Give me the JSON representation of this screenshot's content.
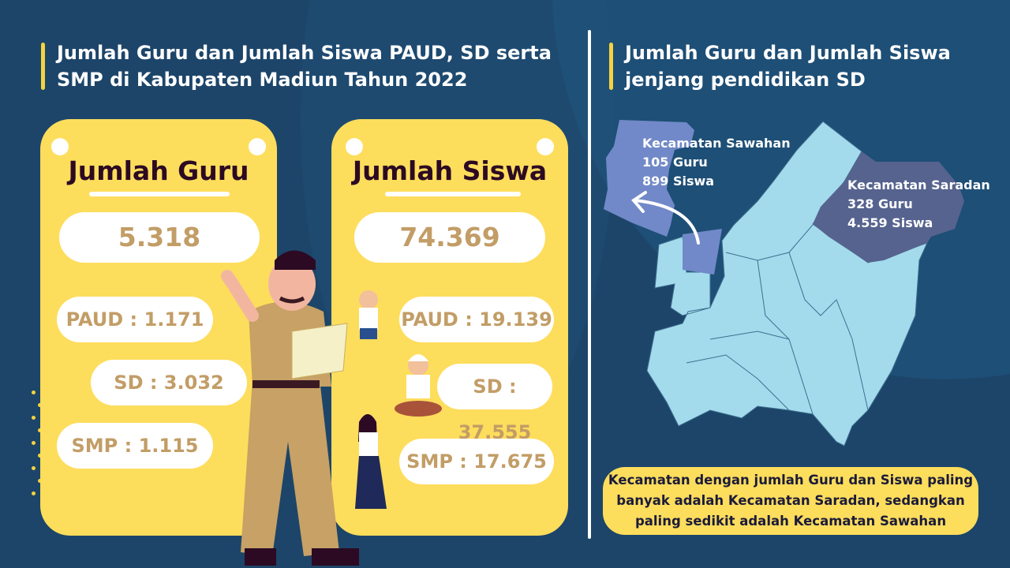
{
  "left": {
    "title": "Jumlah Guru dan Jumlah Siswa PAUD, SD serta SMP di Kabupaten Madiun Tahun 2022",
    "guru_card": {
      "heading": "Jumlah Guru",
      "total": "5.318",
      "items": [
        "PAUD : 1.171",
        "SD : 3.032",
        "SMP : 1.115"
      ]
    },
    "siswa_card": {
      "heading": "Jumlah Siswa",
      "total": "74.369",
      "items": [
        "PAUD : 19.139",
        "SD : 37.555",
        "SMP : 17.675"
      ]
    }
  },
  "right": {
    "title": "Jumlah Guru dan Jumlah Siswa jenjang pendidikan SD",
    "map": {
      "sawahan": {
        "name": "Kecamatan Sawahan",
        "guru": "105 Guru",
        "siswa": "899 Siswa"
      },
      "saradan": {
        "name": "Kecamatan Saradan",
        "guru": "328 Guru",
        "siswa": "4.559 Siswa"
      }
    },
    "note": "Kecamatan dengan jumlah Guru dan Siswa paling banyak adalah Kecamatan Saradan, sedangkan paling sedikit adalah Kecamatan Sawahan"
  },
  "colors": {
    "background": "#1d4569",
    "card": "#fddd5c",
    "value_text": "#c29d66",
    "map_base": "#a3dbec",
    "sawahan": "#7189c8",
    "saradan": "#56638f"
  }
}
